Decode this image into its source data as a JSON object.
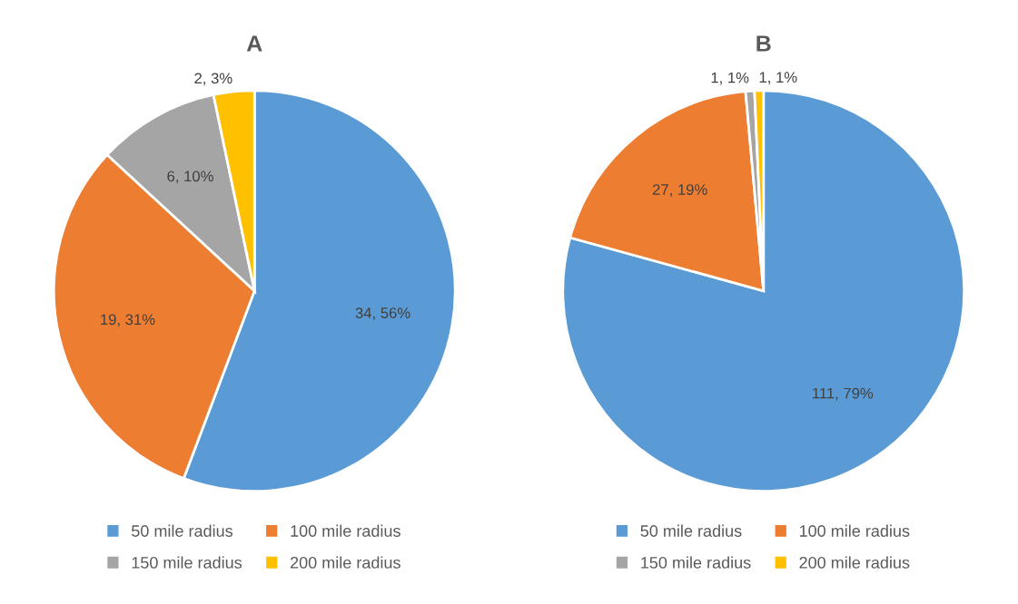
{
  "chart_data": [
    {
      "type": "pie",
      "title": "A",
      "categories": [
        "50 mile radius",
        "100 mile radius",
        "150 mile radius",
        "200 mile radius"
      ],
      "values": [
        34,
        19,
        6,
        2
      ],
      "colors": [
        "#5b9bd5",
        "#ed7d31",
        "#a5a5a5",
        "#ffc000"
      ],
      "value_labels": [
        "34, 56%",
        "19, 31%",
        "6, 10%",
        "2, 3%"
      ],
      "legend": "bottom"
    },
    {
      "type": "pie",
      "title": "B",
      "categories": [
        "50 mile radius",
        "100 mile radius",
        "150 mile radius",
        "200 mile radius"
      ],
      "values": [
        111,
        27,
        1,
        1
      ],
      "colors": [
        "#5b9bd5",
        "#ed7d31",
        "#a5a5a5",
        "#ffc000"
      ],
      "value_labels": [
        "111, 79%",
        "27, 19%",
        "1, 1%",
        "1, 1%"
      ],
      "legend": "bottom"
    }
  ]
}
